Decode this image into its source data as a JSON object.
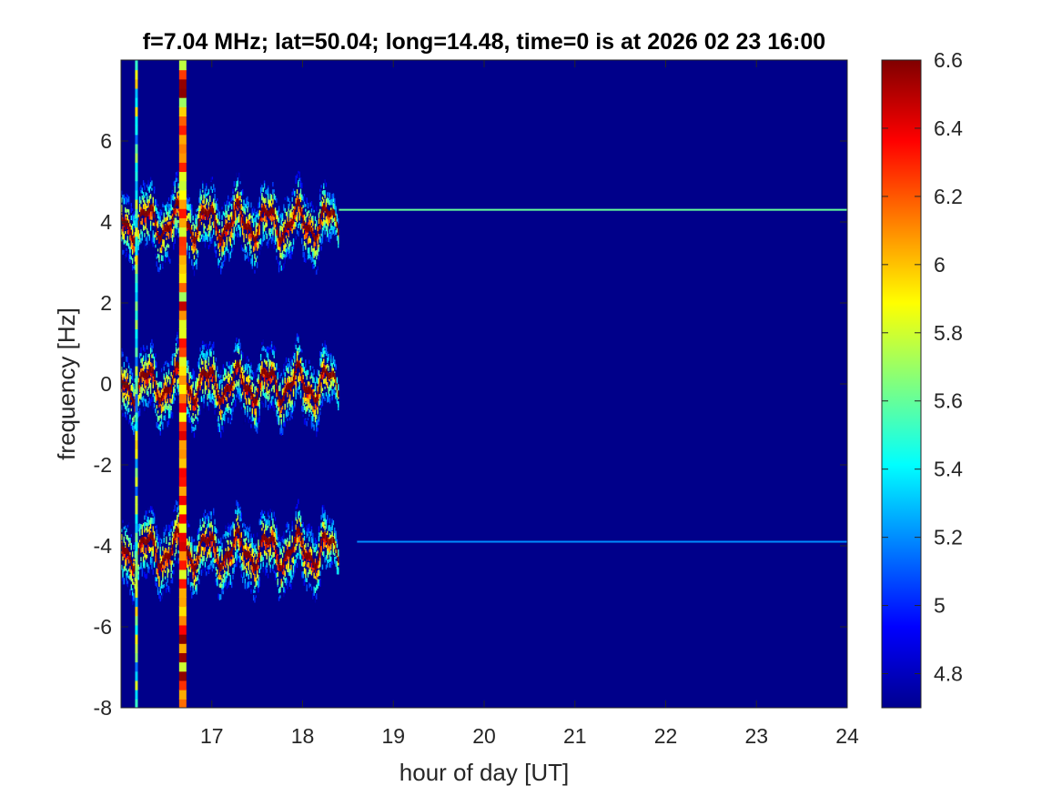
{
  "chart_data": {
    "type": "heatmap",
    "title": "f=7.04 MHz;  lat=50.04; long=14.48, time=0 is at 2026 02 23 16:00",
    "xlabel": "hour of day [UT]",
    "ylabel": "frequency [Hz]",
    "xlim": [
      16,
      24
    ],
    "ylim": [
      -8,
      8
    ],
    "x_ticks": [
      17,
      18,
      19,
      20,
      21,
      22,
      23,
      24
    ],
    "x_tick_labels": [
      "17",
      "18",
      "19",
      "20",
      "21",
      "22",
      "23",
      "24"
    ],
    "y_ticks": [
      -8,
      -6,
      -4,
      -2,
      0,
      2,
      4,
      6
    ],
    "y_tick_labels": [
      "-8",
      "-6",
      "-4",
      "-2",
      "0",
      "2",
      "4",
      "6"
    ],
    "colorbar": {
      "colormap": "jet",
      "clim": [
        4.7,
        6.6
      ],
      "ticks": [
        4.8,
        5,
        5.2,
        5.4,
        5.6,
        5.8,
        6,
        6.2,
        6.4,
        6.6
      ],
      "tick_labels": [
        "4.8",
        "5",
        "5.2",
        "5.4",
        "5.6",
        "5.8",
        "6",
        "6.2",
        "6.4",
        "6.6"
      ]
    },
    "background_value": 4.72,
    "features": [
      {
        "kind": "band",
        "center_freq": 4.0,
        "x_start": 16.0,
        "x_end": 18.4,
        "peak_value": 6.6,
        "spread_hz": 0.8
      },
      {
        "kind": "band",
        "center_freq": 0.0,
        "x_start": 16.0,
        "x_end": 18.4,
        "peak_value": 6.6,
        "spread_hz": 0.8
      },
      {
        "kind": "band",
        "center_freq": -4.1,
        "x_start": 16.0,
        "x_end": 18.4,
        "peak_value": 6.6,
        "spread_hz": 0.8
      },
      {
        "kind": "line",
        "freq": 4.3,
        "x_start": 18.4,
        "x_end": 24.0,
        "value": 5.6
      },
      {
        "kind": "line",
        "freq": -3.9,
        "x_start": 18.6,
        "x_end": 24.0,
        "value": 5.2
      },
      {
        "kind": "vertical_stripe",
        "x": 16.17,
        "value": 6.0
      },
      {
        "kind": "vertical_stripe",
        "x": 16.68,
        "value": 6.6
      }
    ]
  }
}
